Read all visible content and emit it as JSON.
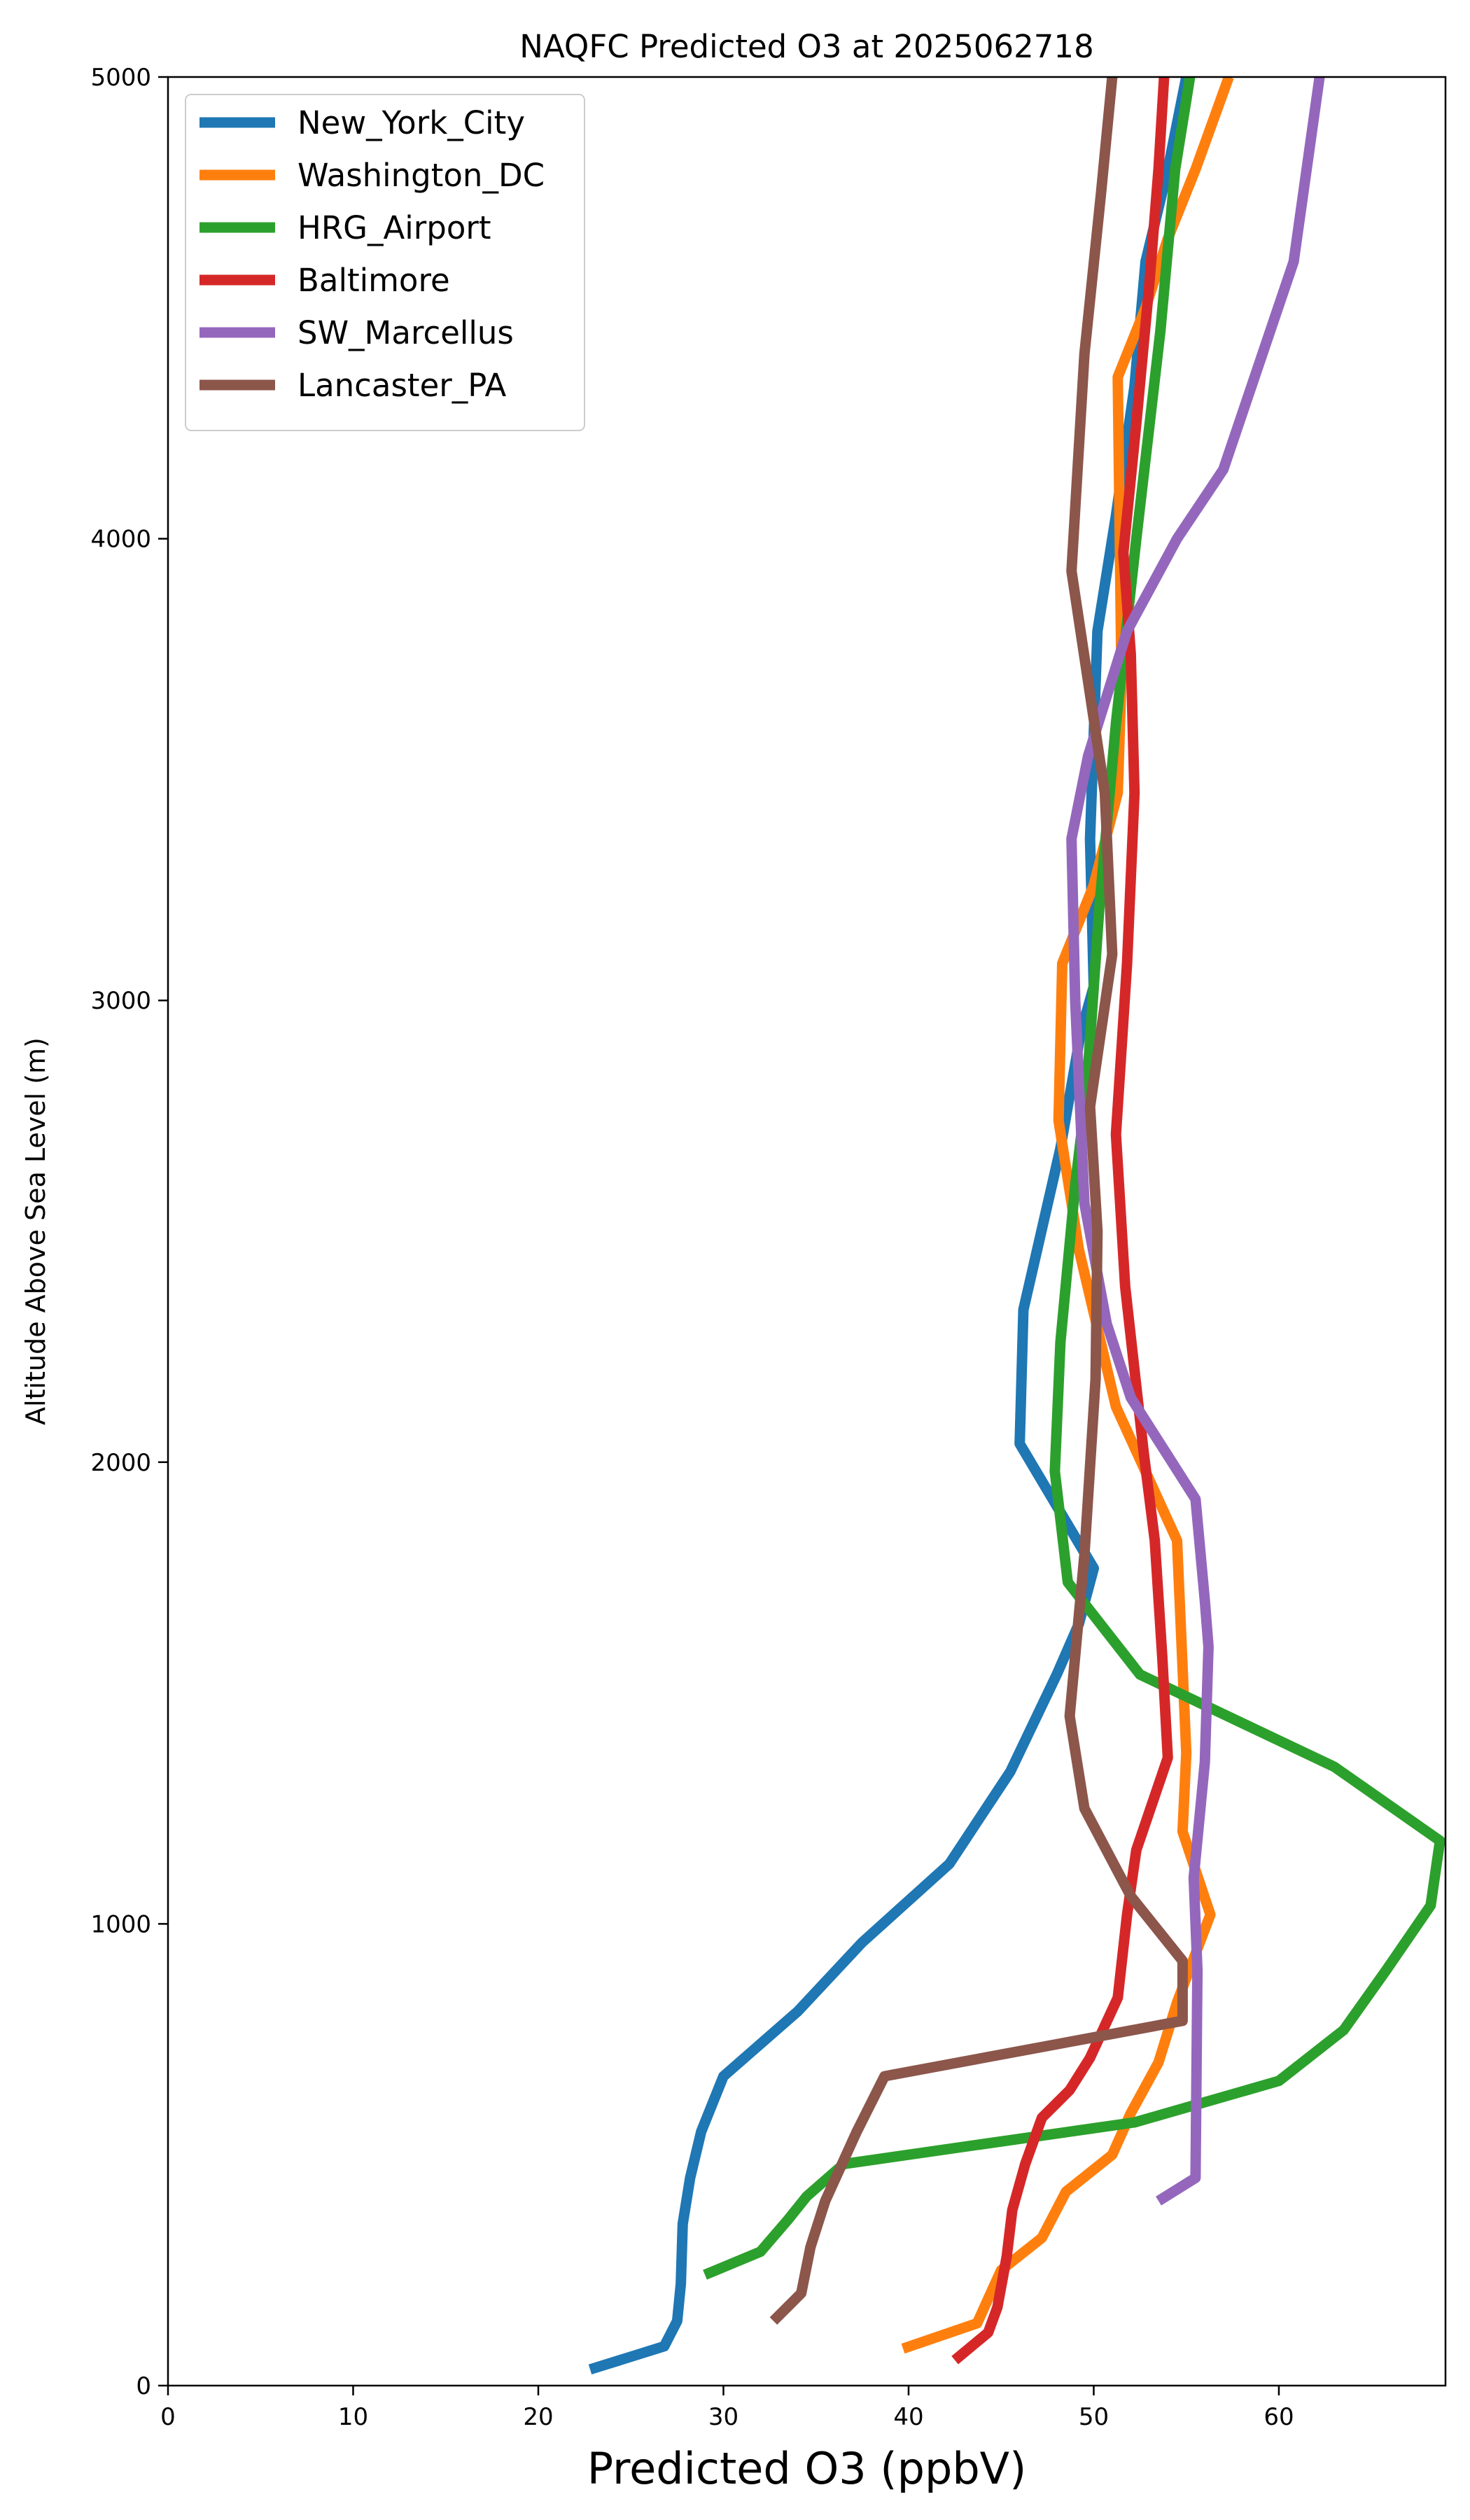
{
  "chart_data": {
    "type": "line",
    "title": "NAQFC Predicted O3 at 2025062718",
    "xlabel": "Predicted O3 (ppbV)",
    "ylabel": "Altitude Above Sea Level (m)",
    "xlim": [
      0,
      69
    ],
    "ylim": [
      0,
      5000
    ],
    "xticks": [
      0,
      10,
      20,
      30,
      40,
      50,
      60
    ],
    "yticks": [
      0,
      1000,
      2000,
      3000,
      4000,
      5000
    ],
    "legend_position": "upper-left",
    "series": [
      {
        "name": "New_York_City",
        "color": "#1f77b4",
        "points": [
          [
            22.8,
            35
          ],
          [
            26.8,
            85
          ],
          [
            27.5,
            140
          ],
          [
            27.7,
            220
          ],
          [
            27.8,
            350
          ],
          [
            28.2,
            450
          ],
          [
            28.8,
            550
          ],
          [
            30.0,
            670
          ],
          [
            34.0,
            810
          ],
          [
            37.5,
            960
          ],
          [
            42.2,
            1130
          ],
          [
            45.5,
            1330
          ],
          [
            48.0,
            1540
          ],
          [
            49.2,
            1650
          ],
          [
            50.0,
            1770
          ],
          [
            46.0,
            2040
          ],
          [
            46.2,
            2330
          ],
          [
            48.2,
            2680
          ],
          [
            49.3,
            2930
          ],
          [
            50.0,
            3030
          ],
          [
            49.8,
            3350
          ],
          [
            50.2,
            3800
          ],
          [
            51.2,
            4050
          ],
          [
            52.2,
            4330
          ],
          [
            52.8,
            4600
          ],
          [
            54.0,
            4800
          ],
          [
            55.0,
            5000
          ]
        ]
      },
      {
        "name": "Washington_DC",
        "color": "#ff7f0e",
        "points": [
          [
            39.7,
            80
          ],
          [
            43.7,
            135
          ],
          [
            45.0,
            250
          ],
          [
            47.2,
            320
          ],
          [
            48.5,
            420
          ],
          [
            51.0,
            500
          ],
          [
            52.0,
            590
          ],
          [
            53.5,
            700
          ],
          [
            54.5,
            830
          ],
          [
            56.3,
            1020
          ],
          [
            54.8,
            1200
          ],
          [
            55.0,
            1370
          ],
          [
            54.5,
            1830
          ],
          [
            51.2,
            2120
          ],
          [
            49.2,
            2460
          ],
          [
            48.1,
            2740
          ],
          [
            48.3,
            3080
          ],
          [
            50.0,
            3250
          ],
          [
            51.3,
            3450
          ],
          [
            51.5,
            3700
          ],
          [
            51.3,
            4350
          ],
          [
            52.8,
            4500
          ],
          [
            54.0,
            4650
          ],
          [
            55.5,
            4800
          ],
          [
            57.3,
            5000
          ]
        ]
      },
      {
        "name": "HRG_Airport",
        "color": "#2ca02c",
        "points": [
          [
            29.0,
            240
          ],
          [
            32.0,
            290
          ],
          [
            33.5,
            360
          ],
          [
            34.5,
            410
          ],
          [
            36.5,
            480
          ],
          [
            52.2,
            570
          ],
          [
            60.0,
            660
          ],
          [
            63.5,
            770
          ],
          [
            65.8,
            900
          ],
          [
            68.2,
            1040
          ],
          [
            68.7,
            1180
          ],
          [
            63.0,
            1340
          ],
          [
            52.5,
            1540
          ],
          [
            48.6,
            1740
          ],
          [
            47.9,
            1980
          ],
          [
            48.2,
            2260
          ],
          [
            49.0,
            2600
          ],
          [
            49.6,
            2800
          ],
          [
            50.3,
            3200
          ],
          [
            51.2,
            3600
          ],
          [
            52.3,
            4000
          ],
          [
            53.6,
            4450
          ],
          [
            54.4,
            4800
          ],
          [
            55.2,
            5000
          ]
        ]
      },
      {
        "name": "Baltimore",
        "color": "#d62728",
        "points": [
          [
            42.5,
            55
          ],
          [
            44.3,
            115
          ],
          [
            44.8,
            170
          ],
          [
            45.3,
            280
          ],
          [
            45.6,
            380
          ],
          [
            46.3,
            480
          ],
          [
            47.2,
            580
          ],
          [
            48.7,
            640
          ],
          [
            49.8,
            710
          ],
          [
            51.3,
            840
          ],
          [
            51.8,
            1020
          ],
          [
            52.3,
            1160
          ],
          [
            54.0,
            1360
          ],
          [
            53.7,
            1580
          ],
          [
            53.3,
            1830
          ],
          [
            52.7,
            2020
          ],
          [
            51.7,
            2380
          ],
          [
            51.2,
            2710
          ],
          [
            51.8,
            3080
          ],
          [
            52.2,
            3450
          ],
          [
            52.0,
            3750
          ],
          [
            51.6,
            3970
          ],
          [
            52.3,
            4250
          ],
          [
            53.0,
            4550
          ],
          [
            53.5,
            4800
          ],
          [
            53.8,
            5000
          ]
        ]
      },
      {
        "name": "SW_Marcellus",
        "color": "#9467bd",
        "points": [
          [
            53.5,
            400
          ],
          [
            55.5,
            450
          ],
          [
            55.6,
            900
          ],
          [
            55.4,
            1100
          ],
          [
            56.0,
            1350
          ],
          [
            56.2,
            1600
          ],
          [
            56.0,
            1700
          ],
          [
            55.5,
            1920
          ],
          [
            52.0,
            2140
          ],
          [
            50.7,
            2300
          ],
          [
            49.5,
            2560
          ],
          [
            49.0,
            3000
          ],
          [
            48.8,
            3350
          ],
          [
            49.7,
            3530
          ],
          [
            51.8,
            3800
          ],
          [
            54.5,
            4000
          ],
          [
            57.0,
            4150
          ],
          [
            60.8,
            4600
          ],
          [
            62.2,
            5000
          ]
        ]
      },
      {
        "name": "Lancaster_PA",
        "color": "#8c564b",
        "points": [
          [
            32.7,
            140
          ],
          [
            34.2,
            200
          ],
          [
            34.7,
            300
          ],
          [
            35.5,
            400
          ],
          [
            37.2,
            550
          ],
          [
            38.7,
            670
          ],
          [
            54.8,
            790
          ],
          [
            54.8,
            920
          ],
          [
            52.0,
            1060
          ],
          [
            49.5,
            1250
          ],
          [
            48.7,
            1450
          ],
          [
            49.5,
            1800
          ],
          [
            50.1,
            2180
          ],
          [
            50.2,
            2500
          ],
          [
            49.8,
            2770
          ],
          [
            51.0,
            3100
          ],
          [
            50.6,
            3450
          ],
          [
            48.8,
            3930
          ],
          [
            49.5,
            4400
          ],
          [
            50.4,
            4750
          ],
          [
            51.0,
            5000
          ]
        ]
      }
    ]
  }
}
